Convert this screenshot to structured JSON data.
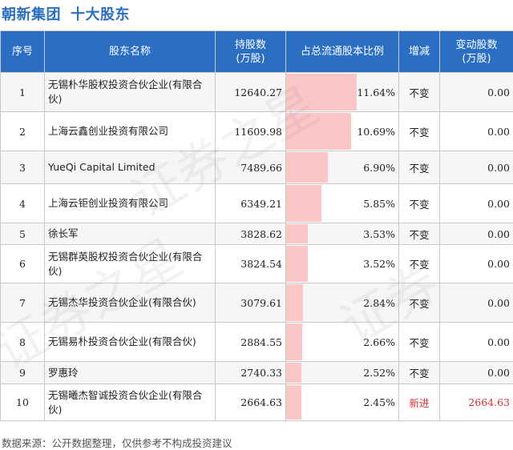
{
  "title": {
    "company": "朝新集团",
    "section": "十大股东"
  },
  "columns": {
    "index": "序号",
    "name": "股东名称",
    "shares": "持股数\n(万股)",
    "ratio": "占总流通股本比例",
    "change": "增减",
    "delta": "变动股数\n(万股)"
  },
  "colors": {
    "header_bg": "#2b6fc4",
    "bar": "#fbc6c6",
    "new": "#e0302f",
    "title": "#2a6fc1"
  },
  "rows": [
    {
      "index": "1",
      "name": "无锡朴华股权投资合伙企业(有限合伙)",
      "shares": "12640.27",
      "ratio": "11.64%",
      "ratio_value": 11.64,
      "change": "不变",
      "delta": "0.00",
      "is_new": false
    },
    {
      "index": "2",
      "name": "上海云鑫创业投资有限公司",
      "shares": "11609.98",
      "ratio": "10.69%",
      "ratio_value": 10.69,
      "change": "不变",
      "delta": "0.00",
      "is_new": false
    },
    {
      "index": "3",
      "name": "YueQi Capital Limited",
      "shares": "7489.66",
      "ratio": "6.90%",
      "ratio_value": 6.9,
      "change": "不变",
      "delta": "0.00",
      "is_new": false
    },
    {
      "index": "4",
      "name": "上海云钜创业投资有限公司",
      "shares": "6349.21",
      "ratio": "5.85%",
      "ratio_value": 5.85,
      "change": "不变",
      "delta": "0.00",
      "is_new": false
    },
    {
      "index": "5",
      "name": "徐长军",
      "shares": "3828.62",
      "ratio": "3.53%",
      "ratio_value": 3.53,
      "change": "不变",
      "delta": "0.00",
      "is_new": false
    },
    {
      "index": "6",
      "name": "无锡群英股权投资合伙企业(有限合伙)",
      "shares": "3824.54",
      "ratio": "3.52%",
      "ratio_value": 3.52,
      "change": "不变",
      "delta": "0.00",
      "is_new": false
    },
    {
      "index": "7",
      "name": "无锡杰华投资合伙企业(有限合伙)",
      "shares": "3079.61",
      "ratio": "2.84%",
      "ratio_value": 2.84,
      "change": "不变",
      "delta": "0.00",
      "is_new": false
    },
    {
      "index": "8",
      "name": "无锡易朴投资合伙企业(有限合伙)",
      "shares": "2884.55",
      "ratio": "2.66%",
      "ratio_value": 2.66,
      "change": "不变",
      "delta": "0.00",
      "is_new": false
    },
    {
      "index": "9",
      "name": "罗惠玲",
      "shares": "2740.33",
      "ratio": "2.52%",
      "ratio_value": 2.52,
      "change": "不变",
      "delta": "0.00",
      "is_new": false
    },
    {
      "index": "10",
      "name": "无锡曦杰智诚投资合伙企业(有限合伙)",
      "shares": "2664.63",
      "ratio": "2.45%",
      "ratio_value": 2.45,
      "change": "新进",
      "delta": "2664.63",
      "is_new": true
    }
  ],
  "footer": "数据来源：公开数据整理，仅供参考不构成投资建议"
}
